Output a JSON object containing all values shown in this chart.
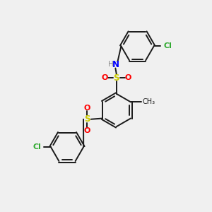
{
  "bg": "#F0F0F0",
  "bond_color": "#1A1A1A",
  "sulfur_color": "#CCCC00",
  "oxygen_color": "#FF0000",
  "nitrogen_color": "#0000FF",
  "chlorine_color": "#33AA33",
  "hydrogen_color": "#888888",
  "lw": 1.4,
  "dbo": 0.055,
  "r_ring": 0.78,
  "figsize": [
    3.0,
    3.0
  ],
  "dpi": 100,
  "xlim": [
    0,
    10
  ],
  "ylim": [
    0,
    10
  ]
}
